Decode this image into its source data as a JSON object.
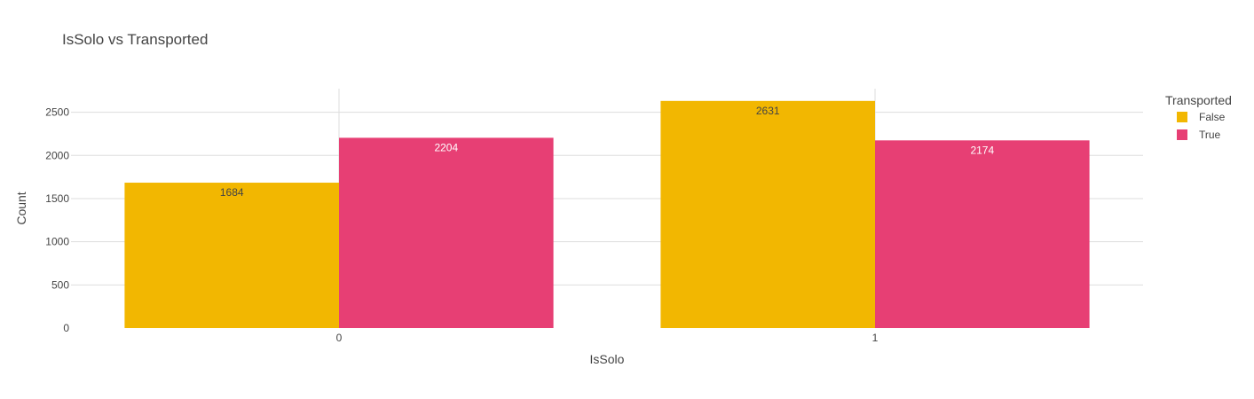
{
  "chart_data": {
    "type": "bar",
    "title": "IsSolo vs Transported",
    "xlabel": "IsSolo",
    "ylabel": "Count",
    "categories": [
      "0",
      "1"
    ],
    "series": [
      {
        "name": "False",
        "values": [
          1684,
          2631
        ],
        "color": "#F2B701",
        "label_color": "#444444"
      },
      {
        "name": "True",
        "values": [
          2204,
          2174
        ],
        "color": "#E73F74",
        "label_color": "#ffffff"
      }
    ],
    "ylim": [
      0,
      2773
    ],
    "yticks": [
      0,
      500,
      1000,
      1500,
      2000,
      2500
    ],
    "grid": true,
    "legend": {
      "title": "Transported",
      "placement": "top-right"
    }
  }
}
